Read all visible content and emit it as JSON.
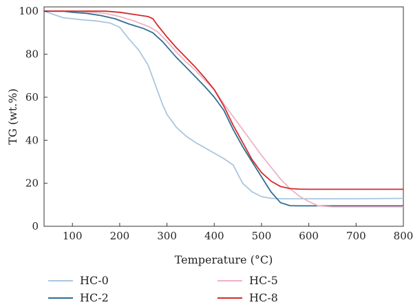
{
  "chart_data": {
    "type": "line",
    "xlabel": "Temperature (°C)",
    "ylabel": "TG (wt.%)",
    "xlim": [
      40,
      800
    ],
    "ylim": [
      0,
      102
    ],
    "xticks": [
      100,
      200,
      300,
      400,
      500,
      600,
      700,
      800
    ],
    "yticks": [
      0,
      20,
      40,
      60,
      80,
      100
    ],
    "grid": false,
    "legend_position": "bottom",
    "series": [
      {
        "name": "HC-0",
        "color": "#a9c6df",
        "x": [
          40,
          60,
          80,
          100,
          120,
          150,
          180,
          200,
          220,
          240,
          260,
          275,
          290,
          300,
          320,
          340,
          360,
          380,
          400,
          420,
          440,
          460,
          480,
          500,
          520,
          540,
          560,
          600,
          700,
          800
        ],
        "y": [
          100,
          98.5,
          97,
          96.5,
          96,
          95.5,
          94.5,
          92.5,
          87,
          82,
          75,
          66,
          57,
          52,
          46,
          42,
          39,
          36.5,
          34,
          31.5,
          28.5,
          20,
          16,
          13.8,
          13,
          12.8,
          12.8,
          12.8,
          12.8,
          13
        ]
      },
      {
        "name": "HC-2",
        "color": "#2e6d92",
        "x": [
          40,
          80,
          100,
          130,
          160,
          190,
          220,
          250,
          270,
          290,
          300,
          320,
          340,
          360,
          380,
          400,
          420,
          440,
          460,
          480,
          500,
          520,
          540,
          560,
          580,
          600,
          700,
          800
        ],
        "y": [
          100,
          100,
          99.5,
          99,
          98,
          96.5,
          94,
          92,
          90,
          86,
          83.5,
          78.5,
          74,
          69.5,
          65,
          60,
          54,
          45,
          37,
          30,
          23,
          16,
          11,
          9.6,
          9.5,
          9.5,
          9.5,
          9.5
        ]
      },
      {
        "name": "HC-5",
        "color": "#eeb2c2",
        "x": [
          40,
          100,
          140,
          170,
          200,
          230,
          260,
          280,
          300,
          320,
          340,
          360,
          380,
          400,
          420,
          440,
          460,
          480,
          500,
          520,
          540,
          560,
          580,
          600,
          620,
          650,
          700,
          800
        ],
        "y": [
          100,
          100,
          99.5,
          99,
          97.5,
          95.5,
          93,
          90.5,
          86,
          81,
          76.5,
          72.5,
          68,
          63.5,
          57,
          51,
          45,
          39,
          33,
          27.5,
          22,
          17.5,
          14,
          11.5,
          9.5,
          9,
          9,
          9
        ]
      },
      {
        "name": "HC-8",
        "color": "#d42a2a",
        "x": [
          40,
          100,
          170,
          200,
          230,
          260,
          270,
          280,
          300,
          320,
          340,
          360,
          380,
          400,
          420,
          440,
          460,
          480,
          500,
          520,
          540,
          560,
          580,
          600,
          700,
          800
        ],
        "y": [
          100,
          100,
          100,
          99.5,
          98.5,
          97.5,
          96.5,
          93.5,
          88,
          83,
          78.5,
          74,
          69,
          63.5,
          56,
          47,
          39,
          31,
          25,
          21,
          18.5,
          17.5,
          17.3,
          17.2,
          17.2,
          17.2
        ]
      }
    ]
  }
}
